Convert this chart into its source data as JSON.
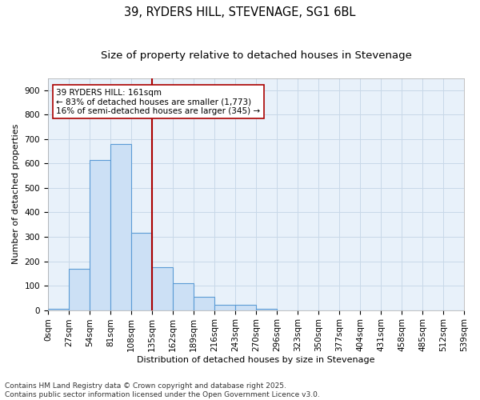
{
  "title_line1": "39, RYDERS HILL, STEVENAGE, SG1 6BL",
  "title_line2": "Size of property relative to detached houses in Stevenage",
  "xlabel": "Distribution of detached houses by size in Stevenage",
  "ylabel": "Number of detached properties",
  "footer_line1": "Contains HM Land Registry data © Crown copyright and database right 2025.",
  "footer_line2": "Contains public sector information licensed under the Open Government Licence v3.0.",
  "annotation_line1": "39 RYDERS HILL: 161sqm",
  "annotation_line2": "← 83% of detached houses are smaller (1,773)",
  "annotation_line3": "16% of semi-detached houses are larger (345) →",
  "bins": [
    "0sqm",
    "27sqm",
    "54sqm",
    "81sqm",
    "108sqm",
    "135sqm",
    "162sqm",
    "189sqm",
    "216sqm",
    "243sqm",
    "270sqm",
    "296sqm",
    "323sqm",
    "350sqm",
    "377sqm",
    "404sqm",
    "431sqm",
    "458sqm",
    "485sqm",
    "512sqm",
    "539sqm"
  ],
  "values": [
    5,
    170,
    615,
    680,
    315,
    175,
    110,
    55,
    20,
    20,
    5,
    0,
    0,
    0,
    0,
    0,
    0,
    0,
    0,
    0
  ],
  "bar_color": "#cce0f5",
  "bar_edge_color": "#5b9bd5",
  "grid_color": "#c8d8e8",
  "background_color": "#e8f1fa",
  "vline_x": 5,
  "vline_color": "#aa0000",
  "ylim": [
    0,
    950
  ],
  "yticks": [
    0,
    100,
    200,
    300,
    400,
    500,
    600,
    700,
    800,
    900
  ],
  "title_fontsize": 10.5,
  "subtitle_fontsize": 9.5,
  "axis_label_fontsize": 8,
  "tick_fontsize": 7.5,
  "annotation_fontsize": 7.5,
  "footer_fontsize": 6.5
}
